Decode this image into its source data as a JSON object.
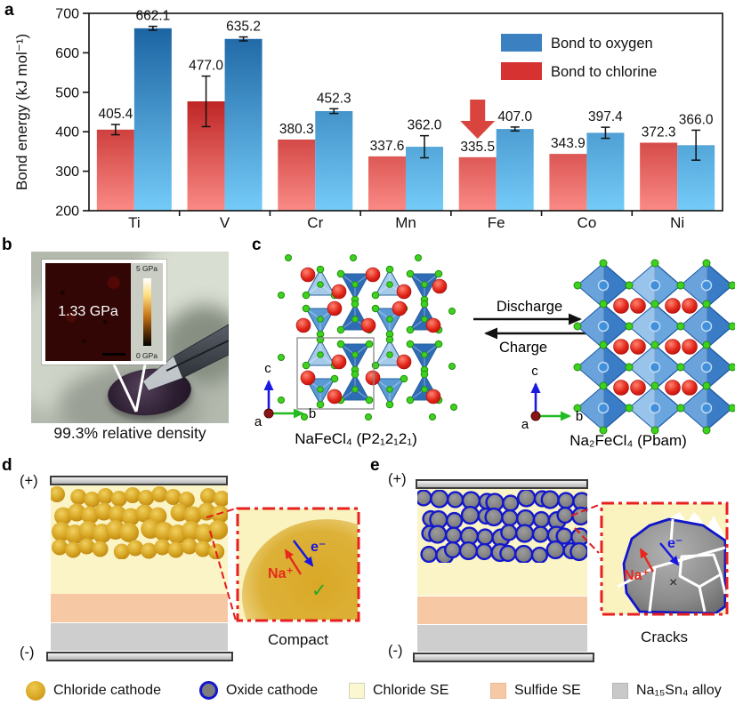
{
  "panels": {
    "a": {
      "letter": "a"
    },
    "b": {
      "letter": "b",
      "inset_value": "1.33 GPa",
      "colorbar_top": "5 GPa",
      "colorbar_bottom": "0 GPa",
      "caption": "99.3% relative density"
    },
    "c": {
      "letter": "c",
      "discharge_label": "Discharge",
      "charge_label": "Charge",
      "left_caption": "NaFeCl₄ (P2₁2₁2₁)",
      "right_caption": "Na₂FeCl₄ (Pbam)",
      "axis_a": "a",
      "axis_b": "b",
      "axis_c": "c"
    },
    "d": {
      "letter": "d",
      "positive": "(+)",
      "negative": "(-)",
      "na_label": "Na⁺",
      "e_label": "e⁻",
      "check": "✓",
      "caption": "Compact"
    },
    "e": {
      "letter": "e",
      "positive": "(+)",
      "negative": "(-)",
      "na_label": "Na⁺",
      "e_label": "e⁻",
      "cross": "×",
      "caption": "Cracks"
    }
  },
  "chart_data": {
    "type": "bar",
    "categories": [
      "Ti",
      "V",
      "Cr",
      "Mn",
      "Fe",
      "Co",
      "Ni"
    ],
    "series": [
      {
        "name": "Bond to chlorine",
        "color": "#d53231",
        "values": [
          405.4,
          477.0,
          380.3,
          337.6,
          335.5,
          343.9,
          372.3
        ],
        "errors": [
          13,
          64,
          0,
          0,
          0,
          0,
          0
        ]
      },
      {
        "name": "Bond to oxygen",
        "color": "#3b80c0",
        "values": [
          662.1,
          635.2,
          452.3,
          362.0,
          407.0,
          397.4,
          366.0
        ],
        "errors": [
          5,
          5,
          6,
          28,
          5,
          14,
          38
        ]
      }
    ],
    "legend": [
      {
        "label": "Bond to oxygen",
        "color": "#3b80c0"
      },
      {
        "label": "Bond to chlorine",
        "color": "#d53231"
      }
    ],
    "ylabel": "Bond energy (kJ mol⁻¹)",
    "ylim": [
      200,
      700
    ],
    "yticks": [
      200,
      300,
      400,
      500,
      600,
      700
    ],
    "grid": false,
    "legend_position": "top-right",
    "annotation_arrow": {
      "category": "Fe",
      "series": "Bond to chlorine",
      "color": "#d9453e"
    }
  },
  "legend": {
    "items": [
      {
        "label": "Chloride cathode",
        "color": "#d9a826"
      },
      {
        "label": "Oxide cathode",
        "color": "#7d7d7d"
      },
      {
        "label": "Chloride SE",
        "color": "#fbf7d0"
      },
      {
        "label": "Sulfide SE",
        "color": "#f6c9a4"
      },
      {
        "label": "Na₁₅Sn₄ alloy",
        "color": "#c9c9c9"
      }
    ]
  }
}
